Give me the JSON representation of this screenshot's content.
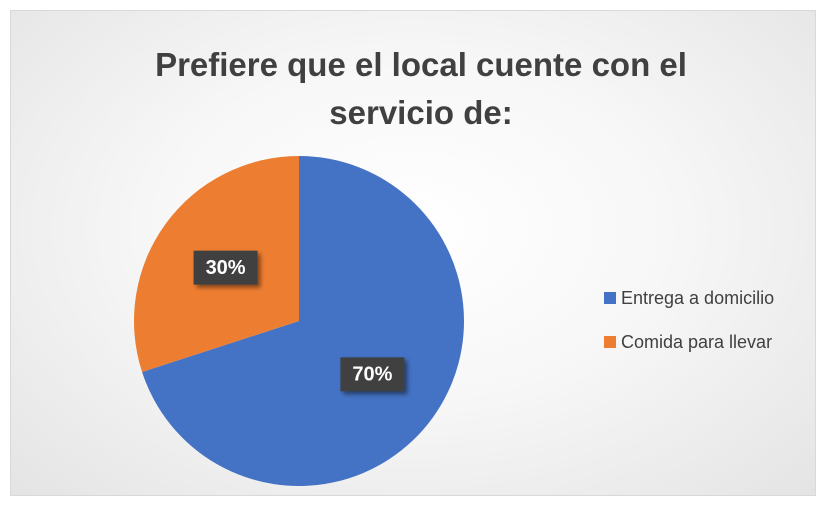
{
  "chart_data": {
    "type": "pie",
    "title": "Prefiere que el local cuente con el servicio de:",
    "categories": [
      "Entrega a domicilio",
      "Comida para llevar"
    ],
    "values": [
      70,
      30
    ],
    "value_labels": [
      "70%",
      "30%"
    ],
    "colors": [
      "#4472c4",
      "#ed7d31"
    ],
    "legend": "right"
  }
}
